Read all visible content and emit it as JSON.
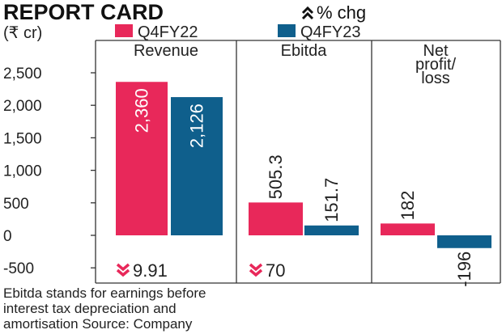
{
  "title": "REPORT CARD",
  "change_label": "% chg",
  "unit": "(₹ cr)",
  "legend": [
    {
      "label": "Q4FY22",
      "color": "#e8285a"
    },
    {
      "label": "Q4FY23",
      "color": "#0f5f8c"
    }
  ],
  "note_lines": [
    "Ebitda stands for earnings before",
    "interest tax depreciation and",
    "amortisation Source: Company"
  ],
  "colors": {
    "q4fy22": "#e8285a",
    "q4fy23": "#0f5f8c",
    "arrow": "#e8285a"
  },
  "chart_data": {
    "type": "bar",
    "title": "REPORT CARD",
    "ylabel": "(₹ cr)",
    "ylim": [
      -500,
      2500
    ],
    "yticks": [
      -500,
      0,
      500,
      1000,
      1500,
      2000,
      2500
    ],
    "ytick_labels": [
      "-500",
      "0",
      "500",
      "1,000",
      "1,500",
      "2,000",
      "2,500"
    ],
    "grid": false,
    "legend_position": "top",
    "categories": [
      "Revenue",
      "Ebitda",
      "Net profit/ loss"
    ],
    "category_label_lines": [
      [
        "Revenue"
      ],
      [
        "Ebitda"
      ],
      [
        "Net",
        "profit/",
        "loss"
      ]
    ],
    "series": [
      {
        "name": "Q4FY22",
        "values": [
          2360,
          505.3,
          182
        ],
        "labels": [
          "2,360",
          "505.3",
          "182"
        ]
      },
      {
        "name": "Q4FY23",
        "values": [
          2126,
          151.7,
          -196
        ],
        "labels": [
          "2,126",
          "151.7",
          "-196"
        ]
      }
    ],
    "pct_change": [
      {
        "category": "Revenue",
        "direction": "down",
        "value": "9.91"
      },
      {
        "category": "Ebitda",
        "direction": "down",
        "value": "70"
      }
    ]
  }
}
